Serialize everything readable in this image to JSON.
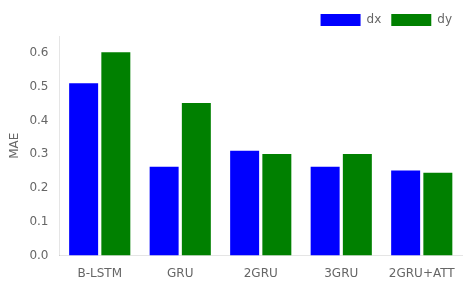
{
  "chart_data": {
    "type": "bar",
    "ylabel": "MAE",
    "categories": [
      "B-LSTM",
      "GRU",
      "2GRU",
      "3GRU",
      "2GRU+ATT"
    ],
    "series": [
      {
        "name": "dx",
        "color": "#0000ff",
        "values": [
          0.51,
          0.263,
          0.31,
          0.263,
          0.252
        ]
      },
      {
        "name": "dy",
        "color": "#008000",
        "values": [
          0.602,
          0.452,
          0.301,
          0.301,
          0.245
        ]
      }
    ],
    "ylim": [
      0.0,
      0.65
    ],
    "yticks": [
      {
        "value": 0.0,
        "label": "0.0"
      },
      0.1,
      0.2,
      0.3,
      0.4,
      0.5,
      0.6
    ],
    "legend": "upper right",
    "grid": false
  }
}
